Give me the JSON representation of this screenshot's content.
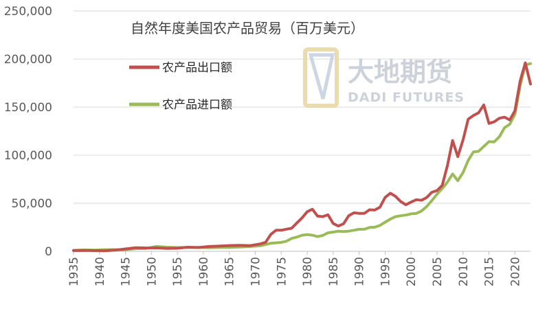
{
  "chart_data": {
    "type": "line",
    "title": "自然年度美国农产品贸易（百万美元）",
    "xlabel": "",
    "ylabel": "",
    "xlim": [
      1935,
      2023
    ],
    "ylim": [
      0,
      250000
    ],
    "y_ticks": [
      "0",
      "50,000",
      "100,000",
      "150,000",
      "200,000",
      "250,000"
    ],
    "y_tick_values": [
      0,
      50000,
      100000,
      150000,
      200000,
      250000
    ],
    "x_ticks": [
      "1935",
      "1940",
      "1945",
      "1950",
      "1955",
      "1960",
      "1965",
      "1970",
      "1975",
      "1980",
      "1985",
      "1990",
      "1995",
      "2000",
      "2005",
      "2010",
      "2015",
      "2020"
    ],
    "x_tick_values": [
      1935,
      1940,
      1945,
      1950,
      1955,
      1960,
      1965,
      1970,
      1975,
      1980,
      1985,
      1990,
      1995,
      2000,
      2005,
      2010,
      2015,
      2020
    ],
    "grid": "horizontal",
    "legend_position": "top-left",
    "series": [
      {
        "name": "农产品出口额",
        "color": "#c0504d",
        "x": [
          1935,
          1937,
          1939,
          1941,
          1943,
          1945,
          1947,
          1949,
          1951,
          1953,
          1955,
          1957,
          1959,
          1961,
          1963,
          1965,
          1967,
          1969,
          1971,
          1972,
          1973,
          1974,
          1975,
          1976,
          1977,
          1978,
          1979,
          1980,
          1981,
          1982,
          1983,
          1984,
          1985,
          1986,
          1987,
          1988,
          1989,
          1990,
          1991,
          1992,
          1993,
          1994,
          1995,
          1996,
          1997,
          1998,
          1999,
          2000,
          2001,
          2002,
          2003,
          2004,
          2005,
          2006,
          2007,
          2008,
          2009,
          2010,
          2011,
          2012,
          2013,
          2014,
          2015,
          2016,
          2017,
          2018,
          2019,
          2020,
          2021,
          2022,
          2023
        ],
        "values": [
          800,
          900,
          700,
          600,
          1200,
          2500,
          3800,
          3500,
          3600,
          3000,
          3200,
          4300,
          3900,
          5000,
          5400,
          6000,
          6300,
          5900,
          7700,
          9400,
          17700,
          21900,
          21900,
          23000,
          24000,
          29400,
          34700,
          41200,
          43800,
          36600,
          36100,
          38000,
          29000,
          26300,
          28700,
          37100,
          40100,
          39500,
          39400,
          43200,
          42900,
          45900,
          56000,
          60400,
          57200,
          51800,
          48400,
          51200,
          53700,
          53100,
          56000,
          61400,
          63200,
          68600,
          89200,
          115300,
          98500,
          115800,
          137400,
          141300,
          144100,
          152300,
          133100,
          134700,
          138400,
          139600,
          136700,
          146200,
          177000,
          196000,
          174000
        ]
      },
      {
        "name": "农产品进口额",
        "color": "#9bbb59",
        "x": [
          1935,
          1937,
          1939,
          1941,
          1943,
          1945,
          1947,
          1949,
          1951,
          1953,
          1955,
          1957,
          1959,
          1961,
          1963,
          1965,
          1967,
          1969,
          1971,
          1973,
          1975,
          1976,
          1977,
          1978,
          1979,
          1980,
          1981,
          1982,
          1983,
          1984,
          1985,
          1986,
          1987,
          1988,
          1989,
          1990,
          1991,
          1992,
          1993,
          1994,
          1995,
          1996,
          1997,
          1998,
          1999,
          2000,
          2001,
          2002,
          2003,
          2004,
          2005,
          2006,
          2007,
          2008,
          2009,
          2010,
          2011,
          2012,
          2013,
          2014,
          2015,
          2016,
          2017,
          2018,
          2019,
          2020,
          2021,
          2022,
          2023
        ],
        "values": [
          1000,
          1500,
          1200,
          1700,
          1800,
          1700,
          2800,
          3100,
          5100,
          4300,
          3900,
          4000,
          4100,
          3700,
          4000,
          4000,
          4500,
          5000,
          5800,
          8400,
          9300,
          10500,
          13400,
          14800,
          16700,
          17400,
          16800,
          15300,
          16500,
          19300,
          20000,
          20900,
          20600,
          21000,
          21900,
          22900,
          22900,
          24800,
          25100,
          26900,
          30300,
          33500,
          36100,
          37000,
          37700,
          39000,
          39400,
          41900,
          46600,
          52700,
          59500,
          65300,
          71900,
          80500,
          73400,
          81900,
          94500,
          103400,
          104000,
          109100,
          114100,
          113800,
          119200,
          128600,
          132200,
          142400,
          171900,
          194000,
          195200
        ]
      }
    ]
  },
  "watermark": {
    "cn": "大地期货",
    "en": "DADI FUTURES"
  }
}
